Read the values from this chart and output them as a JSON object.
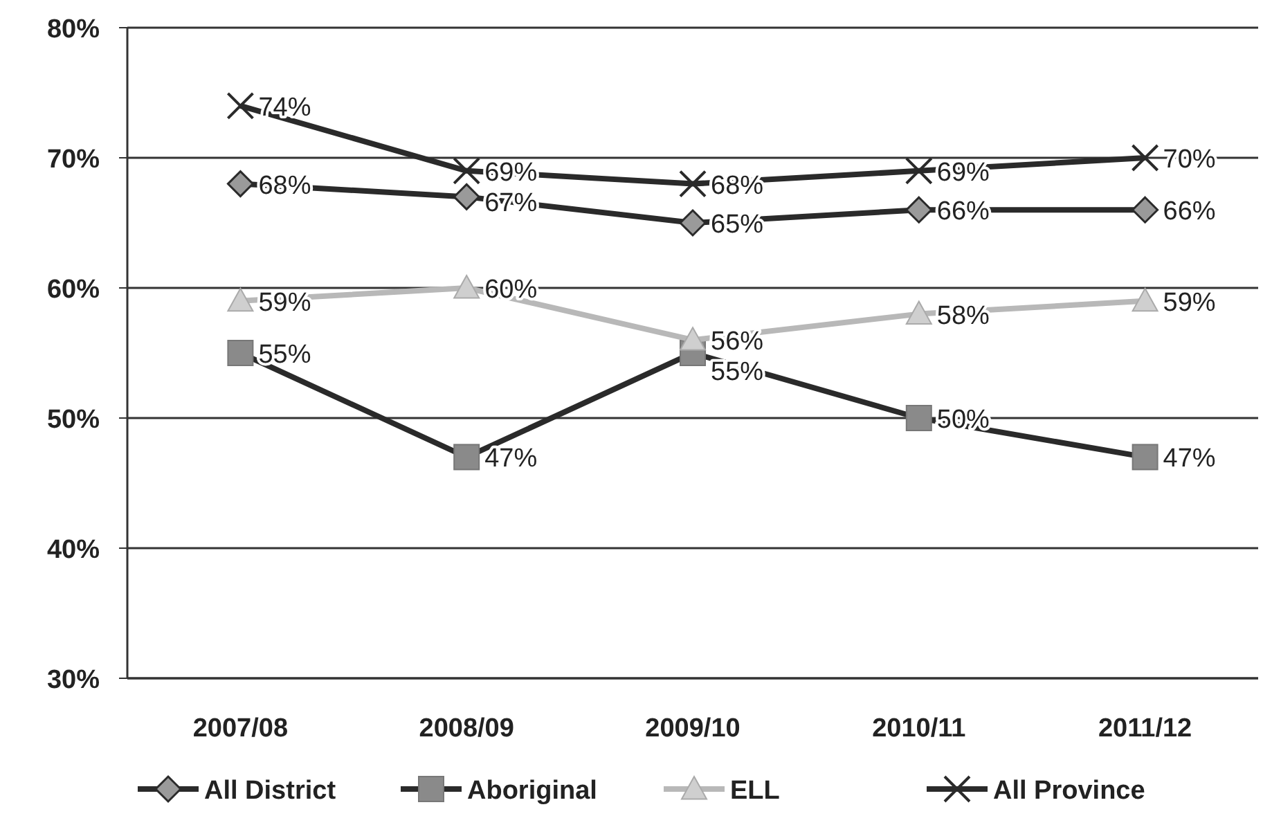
{
  "chart_data": {
    "type": "line",
    "categories": [
      "2007/08",
      "2008/09",
      "2009/10",
      "2010/11",
      "2011/12"
    ],
    "series": [
      {
        "name": "All District",
        "color": "#2a2a2a",
        "marker": "diamond",
        "values": [
          68,
          67,
          65,
          66,
          66
        ],
        "value_labels": [
          "68%",
          "67%",
          "65%",
          "66%",
          "66%"
        ]
      },
      {
        "name": "Aboriginal",
        "color": "#2a2a2a",
        "marker": "square",
        "values": [
          55,
          47,
          55,
          50,
          47
        ],
        "value_labels": [
          "55%",
          "47%",
          "55%",
          "50%",
          "47%"
        ]
      },
      {
        "name": "ELL",
        "color": "#b8b8b8",
        "marker": "triangle",
        "values": [
          59,
          60,
          56,
          58,
          59
        ],
        "value_labels": [
          "59%",
          "60%",
          "56%",
          "58%",
          "59%"
        ]
      },
      {
        "name": "All Province",
        "color": "#2a2a2a",
        "marker": "cross",
        "values": [
          74,
          69,
          68,
          69,
          70
        ],
        "value_labels": [
          "74%",
          "69%",
          "68%",
          "69%",
          "70%"
        ]
      }
    ],
    "ylim": [
      30,
      80
    ],
    "yticks": [
      {
        "value": 30,
        "label": "30%"
      },
      {
        "value": 40,
        "label": "40%"
      },
      {
        "value": 50,
        "label": "50%"
      },
      {
        "value": 60,
        "label": "60%"
      },
      {
        "value": 70,
        "label": "70%"
      },
      {
        "value": 80,
        "label": "80%"
      }
    ],
    "grid": "y",
    "legend": "bottom"
  }
}
